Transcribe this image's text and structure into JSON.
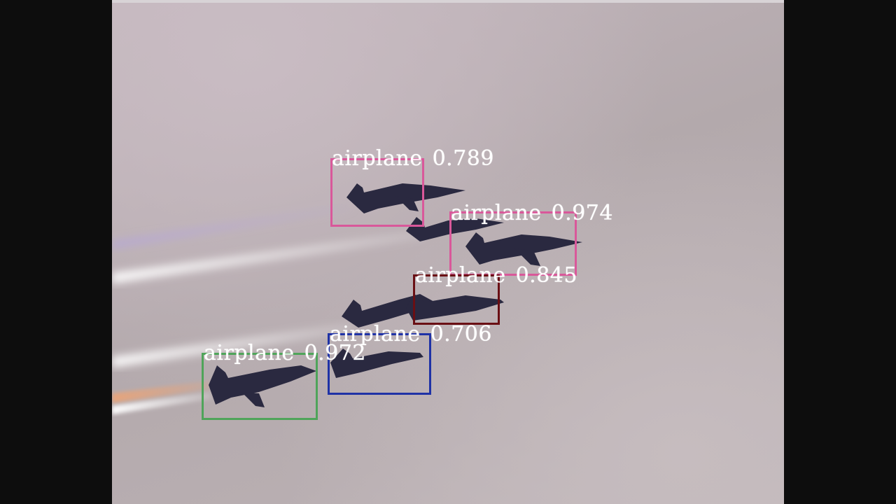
{
  "detections": [
    {
      "label": "airplane",
      "score": "0.789",
      "color": "#d9589a"
    },
    {
      "label": "airplane",
      "score": "0.974",
      "color": "#d9589a"
    },
    {
      "label": "airplane",
      "score": "0.845",
      "color": "#6a0f14"
    },
    {
      "label": "airplane",
      "score": "0.706",
      "color": "#1f32a6"
    },
    {
      "label": "airplane",
      "score": "0.972",
      "color": "#4fa45a"
    }
  ],
  "scene": {
    "subject": "formation of jet aircraft with smoke trails",
    "sky_color": "#b8adb1",
    "smoke_colors": [
      "#ffffff",
      "#c9b7d9",
      "#e8b08a"
    ]
  }
}
